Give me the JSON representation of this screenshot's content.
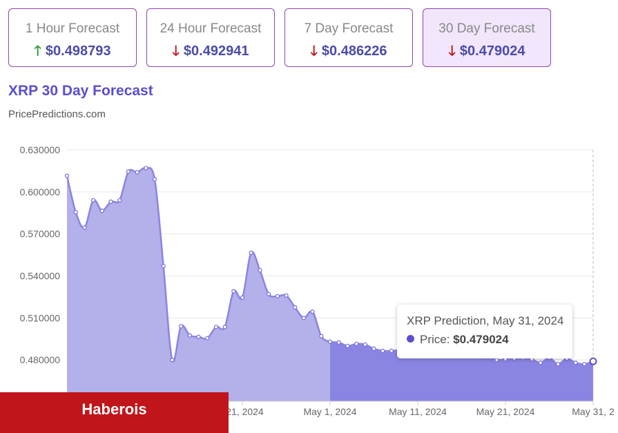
{
  "forecast_cards": [
    {
      "label": "1 Hour Forecast",
      "direction": "up",
      "value": "$0.498793"
    },
    {
      "label": "24 Hour Forecast",
      "direction": "down",
      "value": "$0.492941"
    },
    {
      "label": "7 Day Forecast",
      "direction": "down",
      "value": "$0.486226"
    },
    {
      "label": "30 Day Forecast",
      "direction": "down",
      "value": "$0.479024"
    }
  ],
  "active_card": 3,
  "colors": {
    "accent": "#5a4fcf",
    "card_border": "#8e44ad",
    "up": "#2e9e3a",
    "down": "#c0151b",
    "history_fill": "#b3b0ea",
    "forecast_fill": "#8a84e2",
    "line": "#8a84e2"
  },
  "chart_title": "XRP 30 Day Forecast",
  "source": "PricePredictions.com",
  "tooltip": {
    "title": "XRP Prediction, May 31, 2024",
    "label": "Price:",
    "value": "$0.479024"
  },
  "banner": "Haberois",
  "chart_data": {
    "type": "area",
    "x_type": "date",
    "y_ticks": [
      "0.630000",
      "0.600000",
      "0.570000",
      "0.540000",
      "0.510000",
      "0.480000"
    ],
    "ylim": [
      0.4505,
      0.63
    ],
    "xlim": [
      "2024-04-01",
      "2024-05-31"
    ],
    "x_ticks": [
      {
        "date": "2024-04-21",
        "label": "l 21, 2024"
      },
      {
        "date": "2024-05-01",
        "label": "May 1, 2024"
      },
      {
        "date": "2024-05-11",
        "label": "May 11, 2024"
      },
      {
        "date": "2024-05-21",
        "label": "May 21, 2024"
      },
      {
        "date": "2024-05-31",
        "label": "May 31, 2"
      }
    ],
    "forecast_start": "2024-05-01",
    "grid": true,
    "points": [
      [
        "2024-04-01",
        0.6115
      ],
      [
        "2024-04-02",
        0.5855
      ],
      [
        "2024-04-03",
        0.5745
      ],
      [
        "2024-04-04",
        0.594
      ],
      [
        "2024-04-05",
        0.5865
      ],
      [
        "2024-04-06",
        0.593
      ],
      [
        "2024-04-07",
        0.594
      ],
      [
        "2024-04-08",
        0.6145
      ],
      [
        "2024-04-09",
        0.614
      ],
      [
        "2024-04-10",
        0.617
      ],
      [
        "2024-04-11",
        0.609
      ],
      [
        "2024-04-12",
        0.547
      ],
      [
        "2024-04-13",
        0.48
      ],
      [
        "2024-04-14",
        0.504
      ],
      [
        "2024-04-15",
        0.4975
      ],
      [
        "2024-04-16",
        0.4965
      ],
      [
        "2024-04-17",
        0.4955
      ],
      [
        "2024-04-18",
        0.5035
      ],
      [
        "2024-04-19",
        0.5035
      ],
      [
        "2024-04-20",
        0.529
      ],
      [
        "2024-04-21",
        0.5245
      ],
      [
        "2024-04-22",
        0.5565
      ],
      [
        "2024-04-23",
        0.544
      ],
      [
        "2024-04-24",
        0.527
      ],
      [
        "2024-04-25",
        0.5255
      ],
      [
        "2024-04-26",
        0.526
      ],
      [
        "2024-04-27",
        0.5175
      ],
      [
        "2024-04-28",
        0.51
      ],
      [
        "2024-04-29",
        0.5145
      ],
      [
        "2024-04-30",
        0.497
      ],
      [
        "2024-05-01",
        0.493
      ],
      [
        "2024-05-02",
        0.4925
      ],
      [
        "2024-05-03",
        0.49
      ],
      [
        "2024-05-04",
        0.4915
      ],
      [
        "2024-05-05",
        0.491
      ],
      [
        "2024-05-06",
        0.488
      ],
      [
        "2024-05-07",
        0.4865
      ],
      [
        "2024-05-08",
        0.4865
      ],
      [
        "2024-05-09",
        0.487
      ],
      [
        "2024-05-10",
        0.486
      ],
      [
        "2024-05-11",
        0.4855
      ],
      [
        "2024-05-12",
        0.485
      ],
      [
        "2024-05-13",
        0.4845
      ],
      [
        "2024-05-14",
        0.484
      ],
      [
        "2024-05-15",
        0.484
      ],
      [
        "2024-05-16",
        0.4835
      ],
      [
        "2024-05-17",
        0.483
      ],
      [
        "2024-05-18",
        0.4825
      ],
      [
        "2024-05-19",
        0.482
      ],
      [
        "2024-05-20",
        0.48
      ],
      [
        "2024-05-21",
        0.4805
      ],
      [
        "2024-05-22",
        0.481
      ],
      [
        "2024-05-23",
        0.4815
      ],
      [
        "2024-05-24",
        0.4805
      ],
      [
        "2024-05-25",
        0.478
      ],
      [
        "2024-05-26",
        0.4815
      ],
      [
        "2024-05-27",
        0.477
      ],
      [
        "2024-05-28",
        0.481
      ],
      [
        "2024-05-29",
        0.478
      ],
      [
        "2024-05-30",
        0.477
      ],
      [
        "2024-05-31",
        0.479
      ]
    ]
  }
}
